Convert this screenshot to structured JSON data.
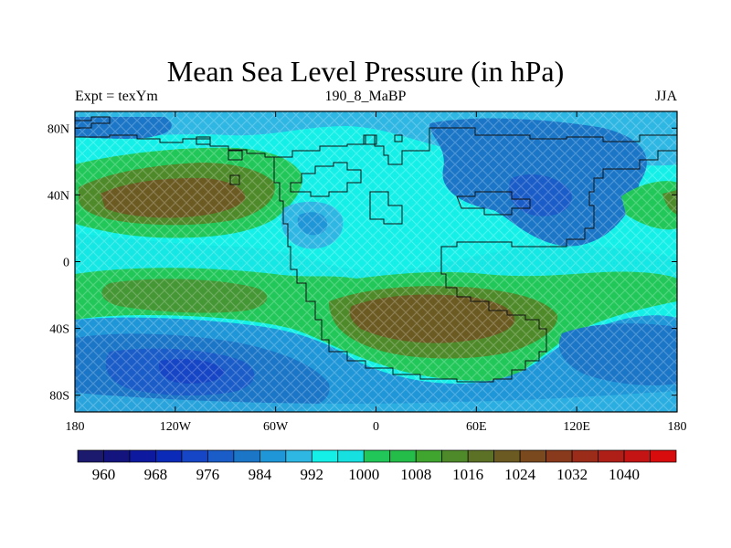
{
  "title": "Mean Sea Level Pressure (in hPa)",
  "left_string": "Expt = texYm",
  "center_string": "190_8_MaBP",
  "right_string": "JJA",
  "lat_ticks": [
    {
      "value": 80,
      "label": "80N"
    },
    {
      "value": 40,
      "label": "40N"
    },
    {
      "value": 0,
      "label": "0"
    },
    {
      "value": -40,
      "label": "40S"
    },
    {
      "value": -80,
      "label": "80S"
    }
  ],
  "lon_ticks": [
    {
      "value": -180,
      "label": "180"
    },
    {
      "value": -120,
      "label": "120W"
    },
    {
      "value": -60,
      "label": "60W"
    },
    {
      "value": 0,
      "label": "0"
    },
    {
      "value": 60,
      "label": "60E"
    },
    {
      "value": 120,
      "label": "120E"
    },
    {
      "value": 180,
      "label": "180"
    }
  ],
  "colorbar": {
    "colors": [
      "#1c1a6e",
      "#13147e",
      "#0d1aa0",
      "#0c2ab8",
      "#1646c6",
      "#1a5cc8",
      "#1b76c8",
      "#1f96d8",
      "#2fb7e4",
      "#14f0e8",
      "#16e0e0",
      "#22c75a",
      "#25bd4a",
      "#3fa52e",
      "#4f8a2a",
      "#5c7125",
      "#6b5a22",
      "#7a4a1e",
      "#8a3a1c",
      "#9c2c1a",
      "#b01e18",
      "#c41414",
      "#d80c0c"
    ],
    "labels": [
      "960",
      "968",
      "976",
      "984",
      "992",
      "1000",
      "1008",
      "1016",
      "1024",
      "1032",
      "1040"
    ]
  }
}
